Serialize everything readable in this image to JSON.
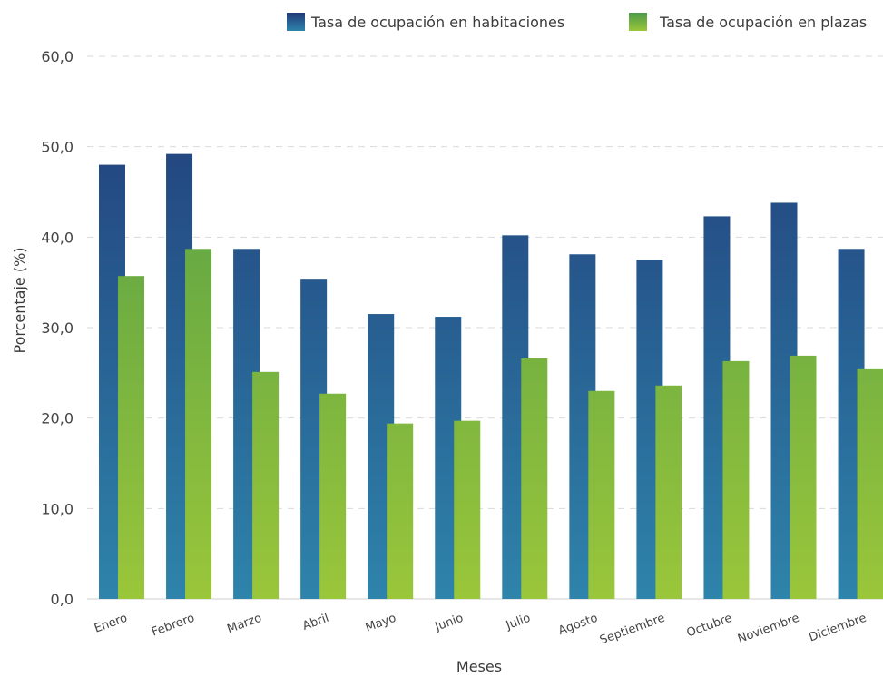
{
  "chart_data": {
    "type": "bar",
    "title": "",
    "xlabel": "Meses",
    "ylabel": "Porcentaje (%)",
    "ylim": [
      0,
      60
    ],
    "yticks": [
      "0,0",
      "10,0",
      "20,0",
      "30,0",
      "40,0",
      "50,0",
      "60,0"
    ],
    "grid": true,
    "legend_position": "top-right",
    "categories": [
      "Enero",
      "Febrero",
      "Marzo",
      "Abril",
      "Mayo",
      "Junio",
      "Julio",
      "Agosto",
      "Septiembre",
      "Octubre",
      "Noviembre",
      "Diciembre"
    ],
    "series": [
      {
        "name": "Tasa de ocupación en habitaciones",
        "values": [
          48.0,
          49.2,
          38.7,
          35.4,
          31.5,
          31.2,
          40.2,
          38.1,
          37.5,
          42.3,
          43.8,
          38.7
        ],
        "color_top": "#213a78",
        "color_bottom": "#2e84ab"
      },
      {
        "name": "Tasa de ocupación en plazas",
        "values": [
          35.7,
          38.7,
          25.1,
          22.7,
          19.4,
          19.7,
          26.6,
          23.0,
          23.6,
          26.3,
          26.9,
          25.4
        ],
        "color_top": "#4c9a48",
        "color_bottom": "#9ac63a"
      }
    ]
  }
}
